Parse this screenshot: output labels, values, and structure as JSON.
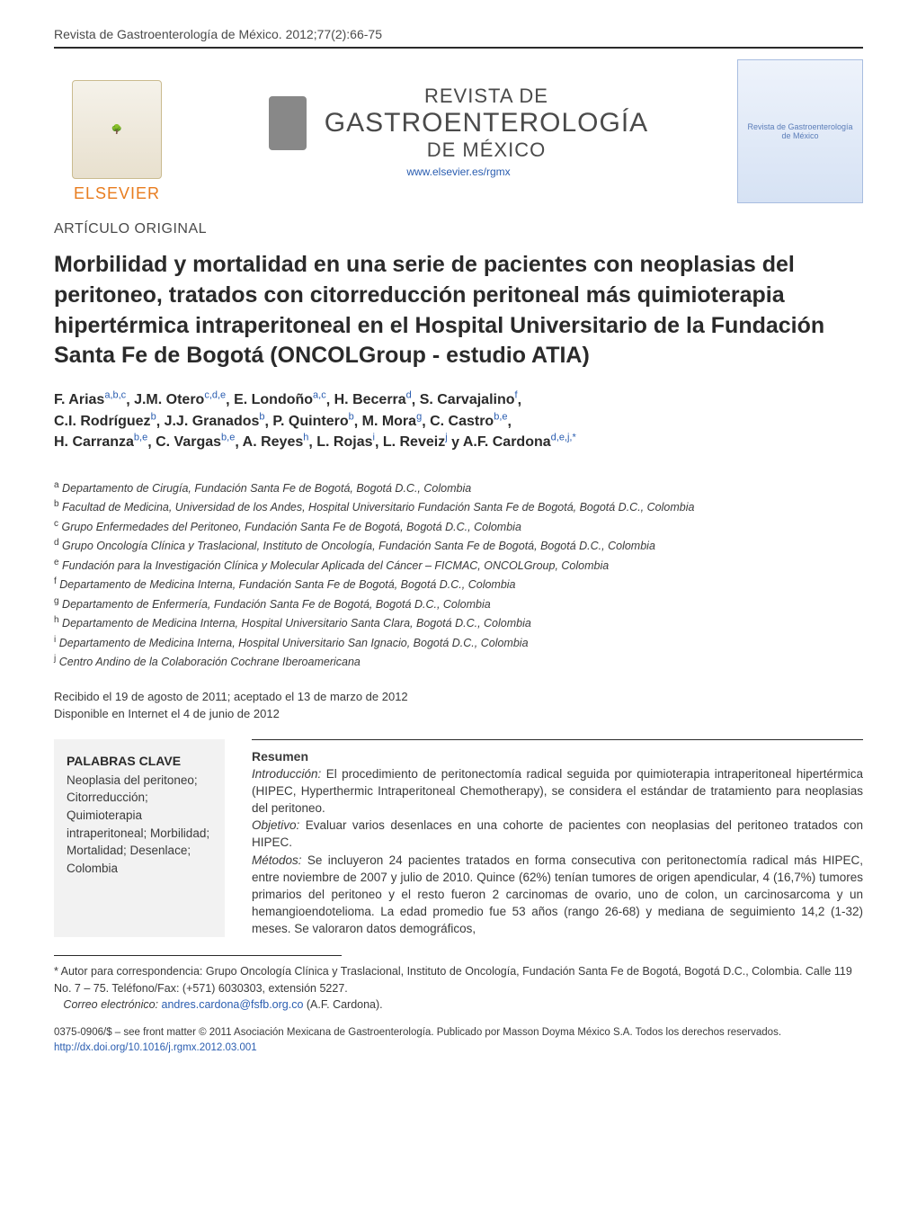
{
  "header": {
    "citation": "Revista de Gastroenterología de México. 2012;77(2):66-75",
    "publisher_logo_text": "ELSEVIER",
    "journal_line1": "REVISTA DE",
    "journal_line2": "GASTROENTEROLOGÍA",
    "journal_line3": "DE MÉXICO",
    "journal_url": "www.elsevier.es/rgmx",
    "cover_caption": "Revista de Gastroenterología de México"
  },
  "article": {
    "section_label": "ARTÍCULO ORIGINAL",
    "title": "Morbilidad y mortalidad en una serie de pacientes con neoplasias del peritoneo, tratados con citorreducción peritoneal más quimioterapia hipertérmica intraperitoneal en el Hospital Universitario de la Fundación Santa Fe de Bogotá (ONCOLGroup - estudio ATIA)"
  },
  "authors": {
    "a1": {
      "name": "F. Arias",
      "sup": "a,b,c"
    },
    "a2": {
      "name": "J.M. Otero",
      "sup": "c,d,e"
    },
    "a3": {
      "name": "E. Londoño",
      "sup": "a,c"
    },
    "a4": {
      "name": "H. Becerra",
      "sup": "d"
    },
    "a5": {
      "name": "S. Carvajalino",
      "sup": "f"
    },
    "a6": {
      "name": "C.I. Rodríguez",
      "sup": "b"
    },
    "a7": {
      "name": "J.J. Granados",
      "sup": "b"
    },
    "a8": {
      "name": "P. Quintero",
      "sup": "b"
    },
    "a9": {
      "name": "M. Mora",
      "sup": "g"
    },
    "a10": {
      "name": "C. Castro",
      "sup": "b,e"
    },
    "a11": {
      "name": "H. Carranza",
      "sup": "b,e"
    },
    "a12": {
      "name": "C. Vargas",
      "sup": "b,e"
    },
    "a13": {
      "name": "A. Reyes",
      "sup": "h"
    },
    "a14": {
      "name": "L. Rojas",
      "sup": "i"
    },
    "a15": {
      "name": "L. Reveiz",
      "sup": "j"
    },
    "a16": {
      "name": "A.F. Cardona",
      "sup": "d,e,j,*",
      "connector": " y "
    }
  },
  "affiliations": {
    "a": "Departamento de Cirugía, Fundación Santa Fe de Bogotá, Bogotá D.C., Colombia",
    "b": "Facultad de Medicina, Universidad de los Andes, Hospital Universitario Fundación Santa Fe de Bogotá, Bogotá D.C., Colombia",
    "c": "Grupo Enfermedades del Peritoneo, Fundación Santa Fe de Bogotá, Bogotá D.C., Colombia",
    "d": "Grupo Oncología Clínica y Traslacional, Instituto de Oncología, Fundación Santa Fe de Bogotá, Bogotá D.C., Colombia",
    "e": "Fundación para la Investigación Clínica y Molecular Aplicada del Cáncer – FICMAC, ONCOLGroup, Colombia",
    "f": "Departamento de Medicina Interna, Fundación Santa Fe de Bogotá, Bogotá D.C., Colombia",
    "g": "Departamento de Enfermería, Fundación Santa Fe de Bogotá, Bogotá D.C., Colombia",
    "h": "Departamento de Medicina Interna, Hospital Universitario Santa Clara, Bogotá D.C., Colombia",
    "i": "Departamento de Medicina Interna, Hospital Universitario San Ignacio, Bogotá D.C., Colombia",
    "j": "Centro Andino de la Colaboración Cochrane Iberoamericana"
  },
  "dates": {
    "received_accepted": "Recibido el 19 de agosto de 2011; aceptado el 13 de marzo de 2012",
    "online": "Disponible en Internet el 4 de junio de 2012"
  },
  "keywords": {
    "title": "PALABRAS CLAVE",
    "body": "Neoplasia del peritoneo; Citorreducción; Quimioterapia intraperitoneal; Morbilidad; Mortalidad; Desenlace; Colombia"
  },
  "abstract": {
    "title": "Resumen",
    "intro_lead": "Introducción:",
    "intro_body": " El procedimiento de peritonectomía radical seguida por quimioterapia intraperitoneal hipertérmica (HIPEC, Hyperthermic Intraperitoneal Chemotherapy), se considera el estándar de tratamiento para neoplasias del peritoneo.",
    "obj_lead": "Objetivo:",
    "obj_body": " Evaluar varios desenlaces en una cohorte de pacientes con neoplasias del peritoneo tratados con HIPEC.",
    "met_lead": "Métodos:",
    "met_body": " Se incluyeron 24 pacientes tratados en forma consecutiva con peritonectomía radical más HIPEC, entre noviembre de 2007 y julio de 2010. Quince (62%) tenían tumores de origen apendicular, 4 (16,7%) tumores primarios del peritoneo y el resto fueron 2 carcinomas de ovario, uno de colon, un carcinosarcoma y un hemangioendotelioma. La edad promedio fue 53 años (rango 26-68) y mediana de seguimiento 14,2 (1-32) meses. Se valoraron datos demográficos,"
  },
  "footnote": {
    "corr_label": "* Autor para correspondencia: ",
    "corr_body": "Grupo Oncología Clínica y Traslacional, Instituto de Oncología, Fundación Santa Fe de Bogotá, Bogotá D.C., Colombia. Calle 119 No. 7 – 75. Teléfono/Fax: (+571) 6030303, extensión 5227.",
    "email_label": "Correo electrónico: ",
    "email": "andres.cardona@fsfb.org.co",
    "email_tail": " (A.F. Cardona)."
  },
  "copyright": {
    "line": "0375-0906/$ – see front matter © 2011 Asociación Mexicana de Gastroenterología. Publicado por Masson Doyma México S.A. Todos los derechos reservados.",
    "doi": "http://dx.doi.org/10.1016/j.rgmx.2012.03.001"
  },
  "colors": {
    "link": "#2a5db0",
    "text": "#3a3a3a",
    "elsevier": "#e87c1e"
  }
}
